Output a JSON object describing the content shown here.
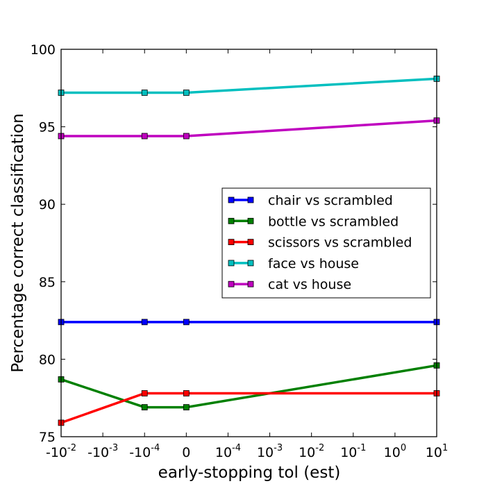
{
  "chart_data": {
    "type": "line",
    "title": "",
    "xlabel": "early-stopping tol (est)",
    "ylabel": "Percentage correct classification",
    "ylim": [
      75,
      100
    ],
    "y_ticks": [
      75,
      80,
      85,
      90,
      95,
      100
    ],
    "x_scale": "symlog",
    "x_tick_labels": [
      {
        "base": "-10",
        "exp": "-2"
      },
      {
        "base": "-10",
        "exp": "-3"
      },
      {
        "base": "-10",
        "exp": "-4"
      },
      {
        "base": "0",
        "exp": ""
      },
      {
        "base": "10",
        "exp": "-4"
      },
      {
        "base": "10",
        "exp": "-3"
      },
      {
        "base": "10",
        "exp": "-2"
      },
      {
        "base": "10",
        "exp": "-1"
      },
      {
        "base": "10",
        "exp": "0"
      },
      {
        "base": "10",
        "exp": "1"
      }
    ],
    "x": [
      "-0.01",
      "-0.0001",
      "0",
      "10"
    ],
    "x_positions": [
      0,
      2,
      3,
      9
    ],
    "x_range": [
      0,
      9
    ],
    "grid": false,
    "legend_position": "center-right",
    "series": [
      {
        "name": "chair vs scrambled",
        "color": "#0000ff",
        "values": [
          82.4,
          82.4,
          82.4,
          82.4
        ]
      },
      {
        "name": "bottle vs scrambled",
        "color": "#008000",
        "values": [
          78.7,
          76.9,
          76.9,
          79.6
        ]
      },
      {
        "name": "scissors vs scrambled",
        "color": "#ff0000",
        "values": [
          75.9,
          77.8,
          77.8,
          77.8
        ]
      },
      {
        "name": "face vs house",
        "color": "#00bfbf",
        "values": [
          97.2,
          97.2,
          97.2,
          98.1
        ]
      },
      {
        "name": "cat vs house",
        "color": "#bf00bf",
        "values": [
          94.4,
          94.4,
          94.4,
          95.4
        ]
      }
    ]
  }
}
